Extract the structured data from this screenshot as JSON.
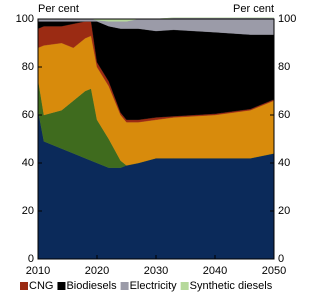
{
  "chart_data": {
    "type": "stacked-area",
    "y_label": "Per cent",
    "y2_label": "Per cent",
    "x": [
      2010,
      2011,
      2014,
      2016,
      2018,
      2019,
      2020,
      2022,
      2024,
      2025,
      2027,
      2030,
      2033,
      2040,
      2046,
      2050
    ],
    "xlim": [
      2010,
      2050
    ],
    "xticks": [
      2010,
      2020,
      2030,
      2040,
      2050
    ],
    "ylim": [
      0,
      100
    ],
    "yticks": [
      0,
      20,
      40,
      60,
      80,
      100
    ],
    "y2lim": [
      0,
      100
    ],
    "y2ticks": [
      0,
      20,
      40,
      60,
      80,
      100
    ],
    "legend": "bottom",
    "series": [
      {
        "name": null,
        "color": "#0b2a5a",
        "values": [
          62,
          49,
          46,
          44,
          42,
          41,
          40,
          38,
          38,
          39,
          40,
          42,
          42,
          42,
          42,
          44
        ]
      },
      {
        "name": null,
        "color": "#3f6b1e",
        "values": [
          13,
          11,
          16,
          22,
          28,
          30,
          18,
          12,
          3,
          0,
          0,
          0,
          0,
          0,
          0,
          0
        ]
      },
      {
        "name": null,
        "color": "#d88b0c",
        "values": [
          13,
          29,
          28,
          22,
          22,
          22,
          22,
          22,
          19,
          18,
          17,
          16,
          17,
          18,
          20,
          22
        ]
      },
      {
        "name": "CNG",
        "color": "#9b2b13",
        "values": [
          8,
          8,
          7,
          10,
          7,
          6,
          2,
          2,
          1,
          1,
          1,
          1,
          0.5,
          0.5,
          0.5,
          0.5
        ]
      },
      {
        "name": "Biodiesels",
        "color": "#000000",
        "values": [
          3,
          2,
          2,
          1,
          0,
          0,
          17,
          23,
          35,
          38,
          38,
          36,
          36,
          34,
          31,
          27
        ]
      },
      {
        "name": "Electricity",
        "color": "#9b9ba8",
        "values": [
          1,
          1,
          1,
          1,
          1,
          1,
          0.5,
          2,
          3,
          3,
          4,
          5,
          5,
          6,
          7,
          7
        ]
      },
      {
        "name": "Synthetic diesels",
        "color": "#b6d99b",
        "values": [
          0,
          0,
          0,
          0,
          0,
          0,
          0.5,
          1,
          1,
          1,
          0,
          0,
          0,
          0,
          0,
          0
        ]
      }
    ]
  }
}
